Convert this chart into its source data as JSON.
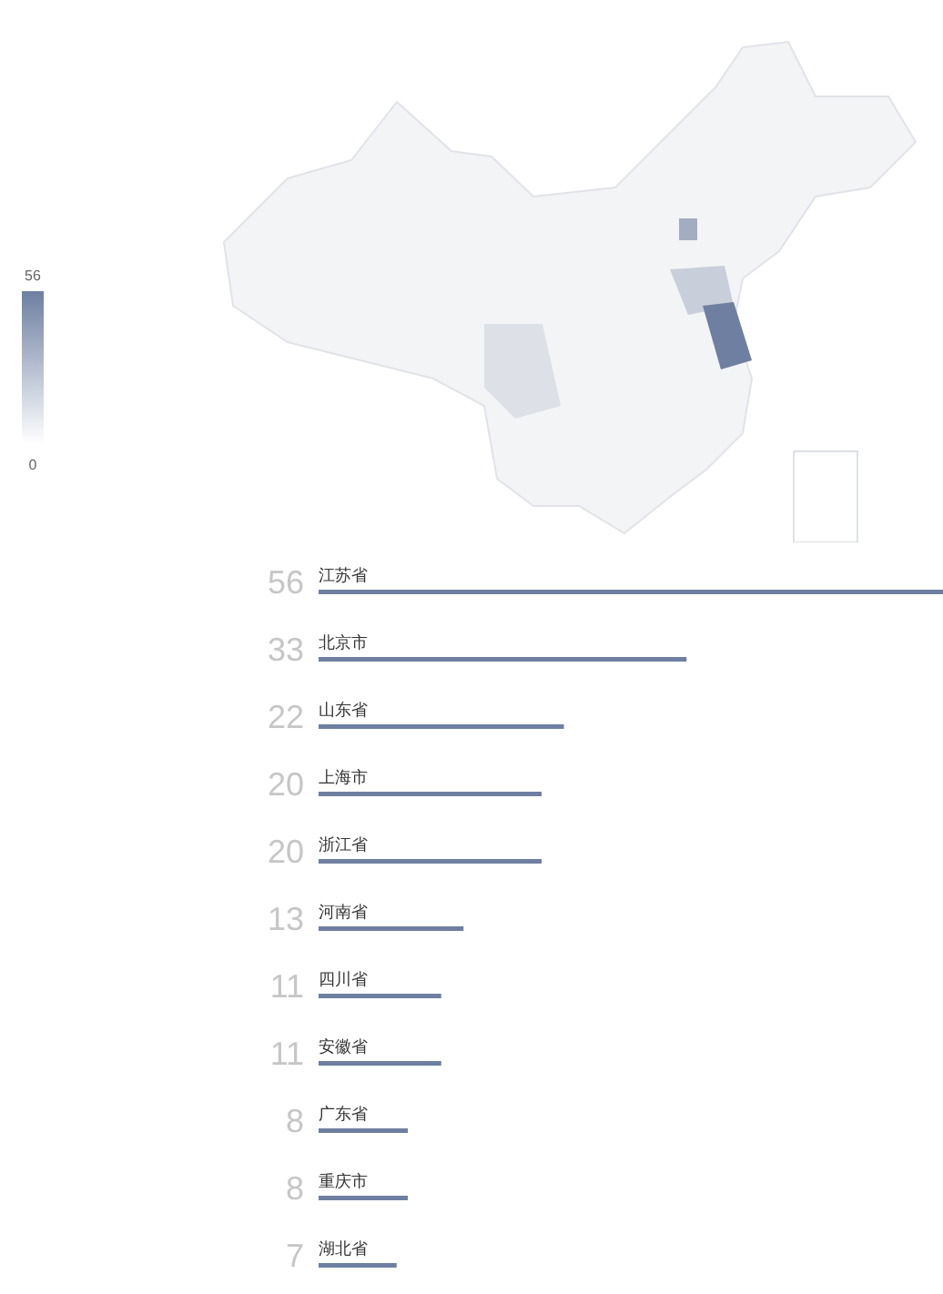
{
  "chart_data": [
    {
      "type": "other",
      "annotations": [
        "56",
        "0"
      ]
    },
    {
      "type": "bar",
      "orientation": "horizontal",
      "categories": [
        "江苏省",
        "北京市",
        "山东省",
        "上海市",
        "浙江省",
        "河南省",
        "四川省",
        "安徽省",
        "广东省",
        "重庆市",
        "湖北省"
      ],
      "values": [
        56,
        33,
        22,
        20,
        20,
        13,
        11,
        11,
        8,
        8,
        7
      ],
      "color": "#6e7fa1",
      "xlim": [
        0,
        56
      ],
      "tick_labels": false,
      "data_labels": true
    }
  ]
}
